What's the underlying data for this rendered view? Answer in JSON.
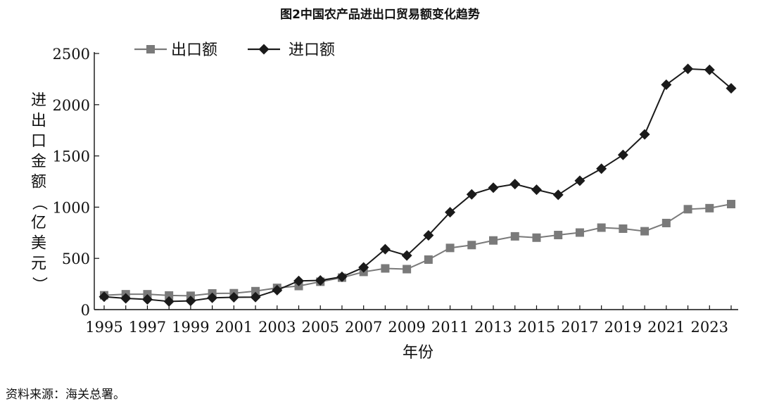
{
  "chart_data": {
    "type": "line",
    "title": "图2中国农产品进出口贸易额变化趋势",
    "xlabel": "年份",
    "ylabel": "进出口金额（亿美元）",
    "x": [
      1995,
      1996,
      1997,
      1998,
      1999,
      2000,
      2001,
      2002,
      2003,
      2004,
      2005,
      2006,
      2007,
      2008,
      2009,
      2010,
      2011,
      2012,
      2013,
      2014,
      2015,
      2016,
      2017,
      2018,
      2019,
      2020,
      2021,
      2022,
      2023,
      2024
    ],
    "x_ticks": [
      "1995",
      "1997",
      "1999",
      "2001",
      "2003",
      "2005",
      "2007",
      "2009",
      "2011",
      "2013",
      "2015",
      "2017",
      "2019",
      "2021",
      "2023"
    ],
    "y_ticks": [
      "0",
      "500",
      "1000",
      "1500",
      "2000",
      "2500"
    ],
    "xlim": [
      1995,
      2024
    ],
    "ylim": [
      0,
      2500
    ],
    "grid": false,
    "legend_position": "top-left",
    "series": [
      {
        "name": "出口额",
        "marker": "square",
        "color": "#7a7a7a",
        "values": [
          140,
          150,
          150,
          138,
          135,
          158,
          160,
          180,
          212,
          230,
          272,
          312,
          368,
          402,
          395,
          488,
          602,
          630,
          675,
          715,
          702,
          728,
          752,
          800,
          790,
          765,
          845,
          980,
          990,
          1030
        ]
      },
      {
        "name": "进口额",
        "marker": "diamond",
        "color": "#1a1a1a",
        "values": [
          125,
          110,
          100,
          80,
          85,
          115,
          120,
          122,
          190,
          280,
          285,
          320,
          412,
          590,
          528,
          725,
          950,
          1125,
          1190,
          1225,
          1170,
          1120,
          1258,
          1375,
          1510,
          1710,
          2195,
          2350,
          2340,
          2160
        ]
      }
    ]
  },
  "source_note": "资料来源：海关总署。"
}
